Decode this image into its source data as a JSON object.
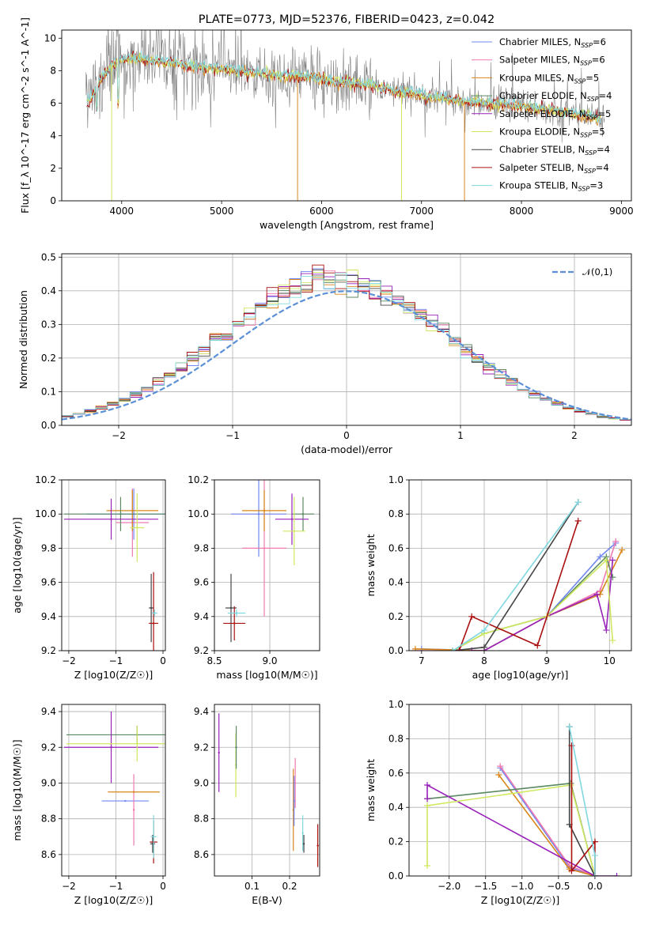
{
  "figure": {
    "title": "PLATE=0773, MJD=52376, FIBERID=0423, z=0.042"
  },
  "colors": {
    "Chabrier MILES": "#6f88f0",
    "Salpeter MILES": "#f07ab0",
    "Kroupa MILES": "#d8861b",
    "Chabrier ELODIE": "#5a8a62",
    "Salpeter ELODIE": "#9922bb",
    "Kroupa ELODIE": "#cfe860",
    "Chabrier STELIB": "#454545",
    "Salpeter STELIB": "#aa1010",
    "Kroupa STELIB": "#80d8e0",
    "data": "#808080",
    "normal": "#5b8fd6"
  },
  "chart_data": [
    {
      "id": "spectrum",
      "type": "line",
      "title": "PLATE=0773, MJD=52376, FIBERID=0423, z=0.042",
      "xlabel": "wavelength [Angstrom, rest frame]",
      "ylabel": "Flux [f_λ 10^-17 erg cm^-2 s^-1 A^-1]",
      "xlim": [
        3400,
        9100
      ],
      "ylim": [
        0,
        10.5
      ],
      "xticks": [
        4000,
        5000,
        6000,
        7000,
        8000,
        9000
      ],
      "yticks": [
        0,
        2,
        4,
        6,
        8,
        10
      ],
      "grid": false,
      "legend_position": "top-right",
      "continuum": {
        "x": [
          3650,
          3700,
          3800,
          3900,
          4000,
          4100,
          4300,
          4500,
          4800,
          5000,
          5300,
          5600,
          5900,
          6200,
          6500,
          6800,
          7100,
          7400,
          7700,
          8000,
          8300,
          8600,
          8800
        ],
        "y": [
          6.0,
          6.3,
          7.6,
          8.3,
          8.7,
          8.8,
          8.6,
          8.5,
          8.2,
          8.1,
          7.9,
          7.7,
          7.6,
          7.3,
          7.1,
          6.7,
          6.4,
          6.1,
          6.0,
          5.8,
          5.6,
          5.3,
          5.0
        ]
      },
      "series": [
        {
          "name": "Chabrier MILES",
          "nssp": "6"
        },
        {
          "name": "Salpeter MILES",
          "nssp": "6"
        },
        {
          "name": "Kroupa MILES",
          "nssp": "5"
        },
        {
          "name": "Chabrier ELODIE",
          "nssp": "4"
        },
        {
          "name": "Salpeter ELODIE",
          "nssp": "5"
        },
        {
          "name": "Kroupa ELODIE",
          "nssp": "5"
        },
        {
          "name": "Chabrier STELIB",
          "nssp": "4"
        },
        {
          "name": "Salpeter STELIB",
          "nssp": "4"
        },
        {
          "name": "Kroupa STELIB",
          "nssp": "3"
        }
      ]
    },
    {
      "id": "residuals",
      "type": "line",
      "xlabel": "(data-model)/error",
      "ylabel": "Normed distribution",
      "xlim": [
        -2.5,
        2.5
      ],
      "ylim": [
        0,
        0.51
      ],
      "xticks": [
        -2,
        -1,
        0,
        1,
        2
      ],
      "yticks": [
        0.0,
        0.1,
        0.2,
        0.3,
        0.4,
        0.5
      ],
      "grid": true,
      "legend": "𝒩(0,1)",
      "legend_position": "top-right",
      "bin_width": 0.1
    },
    {
      "id": "age-vs-Z",
      "type": "scatter",
      "xlabel": "Z [log10(Z/Z☉)]",
      "ylabel": "age [log10(age/yr)]",
      "xlim": [
        -2.15,
        0.05
      ],
      "ylim": [
        9.2,
        10.2
      ],
      "xticks": [
        -2,
        -1,
        0
      ],
      "yticks": [
        9.2,
        9.4,
        9.6,
        9.8,
        10.0,
        10.2
      ],
      "grid": true,
      "points": [
        {
          "s": "Chabrier MILES",
          "x": -0.62,
          "xerr": 1.0,
          "y": 10.0,
          "yerr": 0.15
        },
        {
          "s": "Salpeter MILES",
          "x": -0.65,
          "xerr": 0.35,
          "y": 9.95,
          "yerr": 0.2
        },
        {
          "s": "Kroupa MILES",
          "x": -0.65,
          "xerr": 0.55,
          "y": 10.02,
          "yerr": 0.12
        },
        {
          "s": "Chabrier ELODIE",
          "x": -0.9,
          "xerr": 1.2,
          "y": 10.0,
          "yerr": 0.1
        },
        {
          "s": "Salpeter ELODIE",
          "x": -1.1,
          "xerr": 1.0,
          "y": 9.97,
          "yerr": 0.12
        },
        {
          "s": "Kroupa ELODIE",
          "x": -0.55,
          "xerr": 0.15,
          "y": 9.92,
          "yerr": 0.2
        },
        {
          "s": "Chabrier STELIB",
          "x": -0.25,
          "xerr": 0.05,
          "y": 9.45,
          "yerr": 0.2
        },
        {
          "s": "Salpeter STELIB",
          "x": -0.2,
          "xerr": 0.1,
          "y": 9.36,
          "yerr": 0.3
        },
        {
          "s": "Kroupa STELIB",
          "x": -0.18,
          "xerr": 0.06,
          "y": 9.42,
          "yerr": 0.02
        }
      ]
    },
    {
      "id": "age-vs-mass",
      "type": "scatter",
      "xlabel": "mass [log10(M/M☉)]",
      "xlim": [
        8.5,
        9.45
      ],
      "ylim": [
        9.2,
        10.2
      ],
      "xticks": [
        8.5,
        9.0
      ],
      "yticks": [
        9.2,
        9.4,
        9.6,
        9.8,
        10.0,
        10.2
      ],
      "grid": true,
      "points": [
        {
          "s": "Chabrier MILES",
          "x": 8.9,
          "xerr": 0.25,
          "y": 10.0,
          "yerr": 0.25
        },
        {
          "s": "Salpeter MILES",
          "x": 8.95,
          "xerr": 0.2,
          "y": 9.8,
          "yerr": 0.4
        },
        {
          "s": "Kroupa MILES",
          "x": 8.95,
          "xerr": 0.2,
          "y": 10.02,
          "yerr": 0.12
        },
        {
          "s": "Chabrier ELODIE",
          "x": 9.3,
          "xerr": 0.1,
          "y": 10.0,
          "yerr": 0.1
        },
        {
          "s": "Salpeter ELODIE",
          "x": 9.2,
          "xerr": 0.15,
          "y": 9.97,
          "yerr": 0.15
        },
        {
          "s": "Kroupa ELODIE",
          "x": 9.22,
          "xerr": 0.1,
          "y": 9.9,
          "yerr": 0.2
        },
        {
          "s": "Chabrier STELIB",
          "x": 8.65,
          "xerr": 0.05,
          "y": 9.45,
          "yerr": 0.2
        },
        {
          "s": "Salpeter STELIB",
          "x": 8.68,
          "xerr": 0.1,
          "y": 9.36,
          "yerr": 0.1
        },
        {
          "s": "Kroupa STELIB",
          "x": 8.7,
          "xerr": 0.08,
          "y": 9.42,
          "yerr": 0.02
        }
      ]
    },
    {
      "id": "weight-vs-age",
      "type": "line",
      "xlabel": "age [log10(age/yr)]",
      "ylabel": "mass weight",
      "xlim": [
        6.8,
        10.35
      ],
      "ylim": [
        0,
        1.0
      ],
      "xticks": [
        7,
        8,
        9,
        10
      ],
      "yticks": [
        0.0,
        0.2,
        0.4,
        0.6,
        0.8,
        1.0
      ],
      "grid": true,
      "series": [
        {
          "name": "Chabrier MILES",
          "x": [
            7.0,
            8.0,
            9.0,
            9.85,
            10.1
          ],
          "y": [
            0.01,
            0.0,
            0.2,
            0.55,
            0.63
          ]
        },
        {
          "name": "Salpeter MILES",
          "x": [
            6.9,
            8.0,
            9.0,
            9.85,
            10.1
          ],
          "y": [
            0.0,
            0.0,
            0.2,
            0.35,
            0.64
          ]
        },
        {
          "name": "Kroupa MILES",
          "x": [
            6.9,
            8.0,
            9.0,
            9.85,
            10.2
          ],
          "y": [
            0.01,
            0.0,
            0.2,
            0.33,
            0.59
          ]
        },
        {
          "name": "Chabrier ELODIE",
          "x": [
            7.5,
            8.0,
            9.0,
            9.95,
            10.05
          ],
          "y": [
            0.0,
            0.1,
            0.2,
            0.55,
            0.43
          ]
        },
        {
          "name": "Salpeter ELODIE",
          "x": [
            7.8,
            8.0,
            9.0,
            9.8,
            9.95,
            10.05
          ],
          "y": [
            0.0,
            0.0,
            0.2,
            0.33,
            0.12,
            0.53
          ]
        },
        {
          "name": "Kroupa ELODIE",
          "x": [
            7.5,
            8.0,
            9.0,
            9.95,
            10.05
          ],
          "y": [
            0.0,
            0.1,
            0.2,
            0.53,
            0.06
          ]
        },
        {
          "name": "Chabrier STELIB",
          "x": [
            7.5,
            8.0,
            9.5
          ],
          "y": [
            0.0,
            0.02,
            0.87
          ]
        },
        {
          "name": "Salpeter STELIB",
          "x": [
            7.6,
            7.8,
            8.85,
            9.5
          ],
          "y": [
            0.0,
            0.2,
            0.03,
            0.76
          ]
        },
        {
          "name": "Kroupa STELIB",
          "x": [
            7.5,
            8.0,
            9.5
          ],
          "y": [
            0.0,
            0.12,
            0.87
          ]
        }
      ]
    },
    {
      "id": "mass-vs-Z",
      "type": "scatter",
      "xlabel": "Z [log10(Z/Z☉)]",
      "ylabel": "mass [log10(M/M☉)]",
      "xlim": [
        -2.15,
        0.05
      ],
      "ylim": [
        8.48,
        9.44
      ],
      "xticks": [
        -2,
        -1,
        0
      ],
      "yticks": [
        8.6,
        8.8,
        9.0,
        9.2,
        9.4
      ],
      "grid": true,
      "points": [
        {
          "s": "Chabrier MILES",
          "x": -0.8,
          "xerr": 0.5,
          "y": 8.9,
          "yerr": 0.0
        },
        {
          "s": "Salpeter MILES",
          "x": -0.62,
          "xerr": 0.02,
          "y": 8.85,
          "yerr": 0.2
        },
        {
          "s": "Kroupa MILES",
          "x": -0.62,
          "xerr": 0.55,
          "y": 8.95,
          "yerr": 0.0
        },
        {
          "s": "Chabrier ELODIE",
          "x": -0.55,
          "xerr": 1.5,
          "y": 9.27,
          "yerr": 0.05
        },
        {
          "s": "Salpeter ELODIE",
          "x": -1.1,
          "xerr": 1.0,
          "y": 9.2,
          "yerr": 0.2
        },
        {
          "s": "Kroupa ELODIE",
          "x": -0.55,
          "xerr": 1.5,
          "y": 9.22,
          "yerr": 0.1
        },
        {
          "s": "Chabrier STELIB",
          "x": -0.22,
          "xerr": 0.05,
          "y": 8.66,
          "yerr": 0.05
        },
        {
          "s": "Salpeter STELIB",
          "x": -0.2,
          "xerr": 0.08,
          "y": 8.67,
          "yerr": 0.12
        },
        {
          "s": "Kroupa STELIB",
          "x": -0.2,
          "xerr": 0.06,
          "y": 8.7,
          "yerr": 0.12
        }
      ]
    },
    {
      "id": "mass-vs-ebv",
      "type": "scatter",
      "xlabel": "E(B-V)",
      "xlim": [
        0.0,
        0.28
      ],
      "ylim": [
        8.48,
        9.44
      ],
      "xticks": [
        0.1,
        0.2
      ],
      "yticks": [
        8.6,
        8.8,
        9.0,
        9.2,
        9.4
      ],
      "grid": true,
      "points": [
        {
          "s": "Salpeter ELODIE",
          "x": 0.012,
          "y": 9.17,
          "yerr": 0.22
        },
        {
          "s": "Kroupa ELODIE",
          "x": 0.057,
          "y": 9.1,
          "yerr": 0.18
        },
        {
          "s": "Chabrier ELODIE",
          "x": 0.058,
          "y": 9.2,
          "yerr": 0.12
        },
        {
          "s": "Salpeter MILES",
          "x": 0.215,
          "y": 9.0,
          "yerr": 0.14
        },
        {
          "s": "Kroupa MILES",
          "x": 0.21,
          "y": 8.85,
          "yerr": 0.23
        },
        {
          "s": "Chabrier MILES",
          "x": 0.212,
          "y": 8.9,
          "yerr": 0.14
        },
        {
          "s": "Kroupa STELIB",
          "x": 0.235,
          "y": 8.72,
          "yerr": 0.1
        },
        {
          "s": "Chabrier STELIB",
          "x": 0.238,
          "y": 8.66,
          "yerr": 0.05
        },
        {
          "s": "Salpeter STELIB",
          "x": 0.275,
          "y": 8.65,
          "yerr": 0.12
        }
      ]
    },
    {
      "id": "weight-vs-Z",
      "type": "line",
      "xlabel": "Z [log10(Z/Z☉)]",
      "ylabel": "mass weight",
      "xlim": [
        -2.55,
        0.5
      ],
      "ylim": [
        0,
        1.0
      ],
      "xticks": [
        -2.0,
        -1.5,
        -1.0,
        -0.5,
        0.0
      ],
      "yticks": [
        0.0,
        0.2,
        0.4,
        0.6,
        0.8,
        1.0
      ],
      "grid": true,
      "series": [
        {
          "name": "Chabrier MILES",
          "x": [
            -1.3,
            -0.35,
            0.0
          ],
          "y": [
            0.63,
            0.05,
            0.0
          ]
        },
        {
          "name": "Salpeter MILES",
          "x": [
            -1.3,
            -0.35,
            0.0
          ],
          "y": [
            0.64,
            0.06,
            0.0
          ]
        },
        {
          "name": "Kroupa MILES",
          "x": [
            -1.32,
            -0.35,
            0.0
          ],
          "y": [
            0.59,
            0.04,
            0.0
          ]
        },
        {
          "name": "Chabrier ELODIE",
          "x": [
            -2.3,
            -0.33,
            0.0
          ],
          "y": [
            0.45,
            0.54,
            0.0
          ]
        },
        {
          "name": "Salpeter ELODIE",
          "x": [
            -2.3,
            -2.3,
            0.0,
            0.3
          ],
          "y": [
            0.45,
            0.53,
            0.0,
            0.0
          ]
        },
        {
          "name": "Kroupa ELODIE",
          "x": [
            -2.3,
            -2.3,
            -0.33,
            0.0
          ],
          "y": [
            0.06,
            0.41,
            0.53,
            0.0
          ]
        },
        {
          "name": "Chabrier STELIB",
          "x": [
            -0.35,
            -0.35,
            0.0
          ],
          "y": [
            0.87,
            0.3,
            0.0
          ]
        },
        {
          "name": "Salpeter STELIB",
          "x": [
            -0.32,
            -0.32,
            0.0,
            0.0
          ],
          "y": [
            0.76,
            0.03,
            0.2,
            0.0
          ]
        },
        {
          "name": "Kroupa STELIB",
          "x": [
            -0.35,
            0.0,
            0.0
          ],
          "y": [
            0.87,
            0.12,
            0.0
          ]
        }
      ]
    }
  ]
}
